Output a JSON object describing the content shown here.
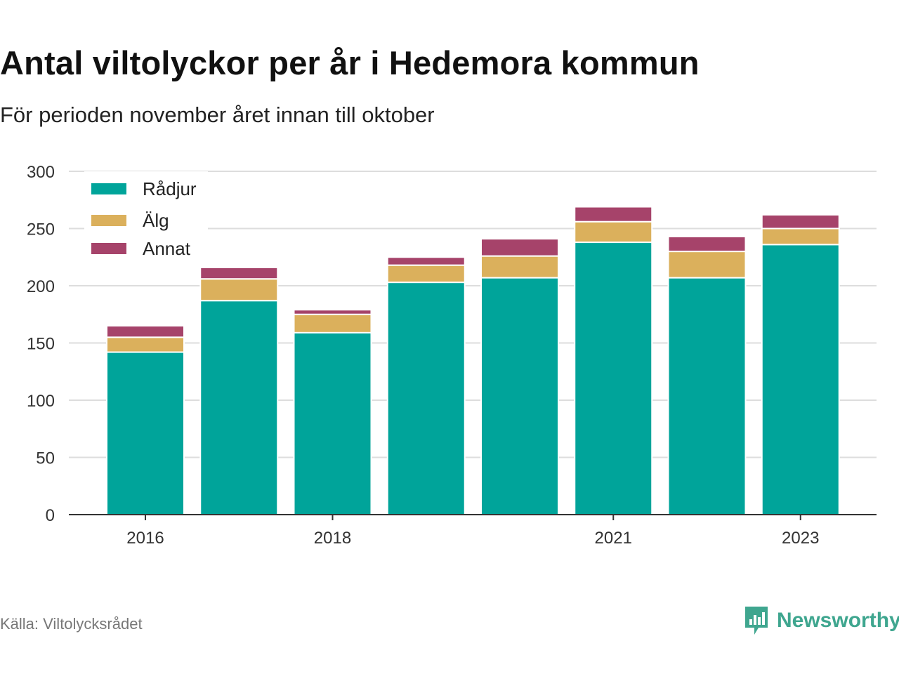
{
  "header": {
    "title": "Antal viltolyckor per år i Hedemora kommun",
    "subtitle": "För perioden november året innan till oktober"
  },
  "footer": {
    "source": "Källa: Viltolycksrådet",
    "brand": "Newsworthy",
    "brand_icon": "bar-chart-logo-icon"
  },
  "colors": {
    "radjur": "#00a49a",
    "alg": "#dbb05c",
    "annat": "#a6436a",
    "grid": "#dddddd",
    "axis": "#333333",
    "brand": "#3fa68f"
  },
  "chart_data": {
    "type": "bar",
    "stacked": true,
    "categories": [
      "2016",
      "2017",
      "2018",
      "2019",
      "2020",
      "2021",
      "2022",
      "2023"
    ],
    "x_tick_labels": [
      "2016",
      "",
      "2018",
      "",
      "",
      "2021",
      "",
      "2023"
    ],
    "series": [
      {
        "name": "Rådjur",
        "values": [
          142,
          187,
          159,
          203,
          207,
          238,
          207,
          236
        ]
      },
      {
        "name": "Älg",
        "values": [
          13,
          19,
          16,
          15,
          19,
          18,
          23,
          14
        ]
      },
      {
        "name": "Annat",
        "values": [
          10,
          10,
          4,
          7,
          15,
          13,
          13,
          12
        ]
      }
    ],
    "ylim": [
      0,
      300
    ],
    "yticks": [
      0,
      50,
      100,
      150,
      200,
      250,
      300
    ],
    "grid": true,
    "legend_position": "top-left"
  }
}
